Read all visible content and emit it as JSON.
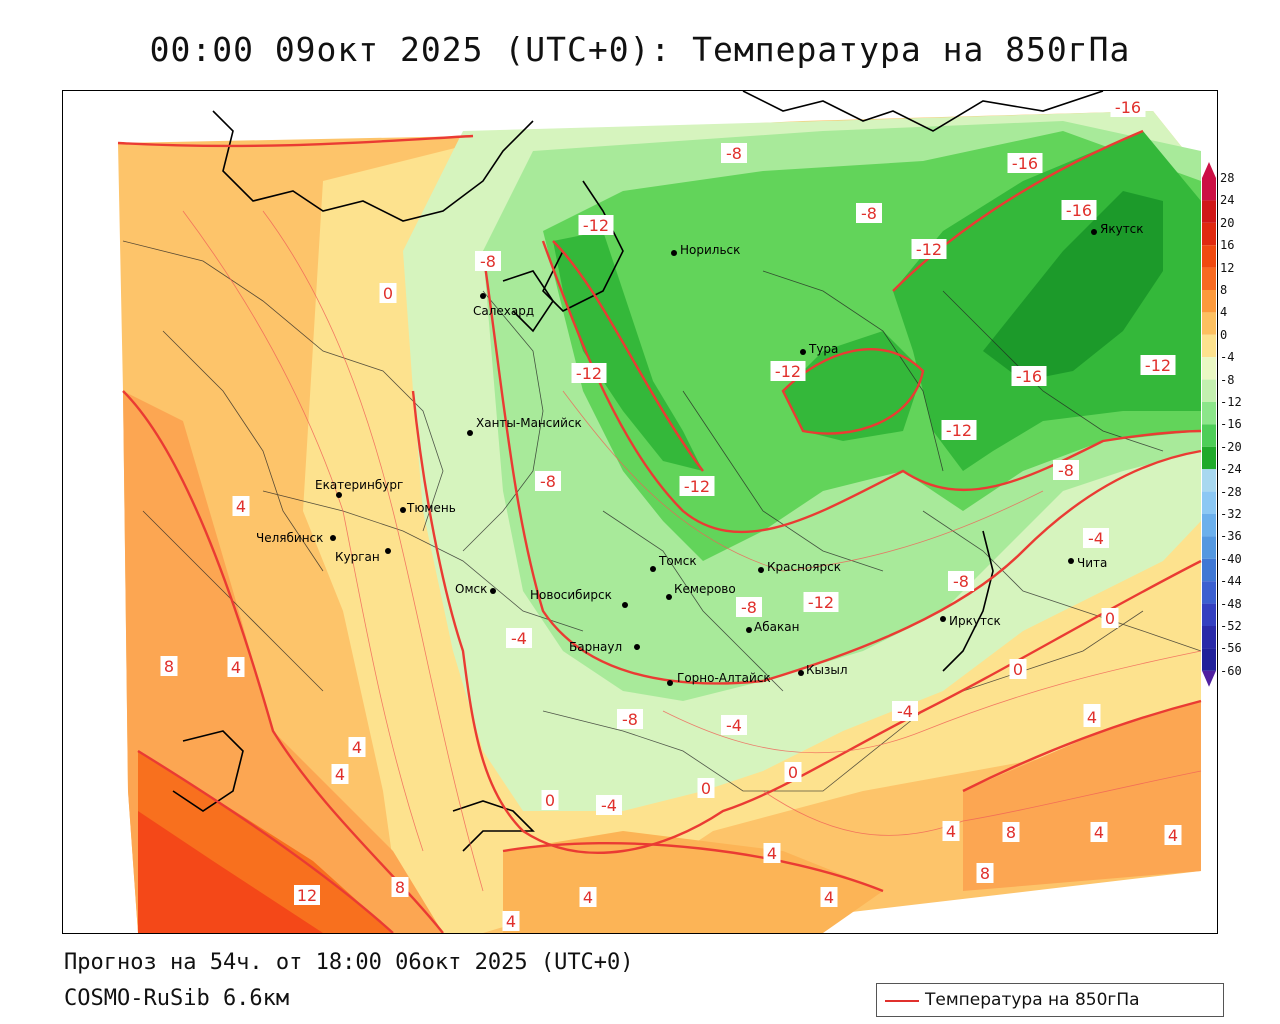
{
  "title": "00:00 09окт 2025 (UTC+0): Температура на 850гПа",
  "footer": {
    "forecast": "Прогноз на 54ч. от 18:00 06окт 2025 (UTC+0)",
    "model": "COSMO-RuSib 6.6км"
  },
  "legend": {
    "label": "Температура на 850гПа"
  },
  "scale": {
    "values": [
      "28",
      "24",
      "20",
      "16",
      "12",
      "8",
      "4",
      "0",
      "-4",
      "-8",
      "-12",
      "-16",
      "-20",
      "-24",
      "-28",
      "-32",
      "-36",
      "-40",
      "-44",
      "-48",
      "-52",
      "-56",
      "-60"
    ],
    "colors": [
      "#cc1044",
      "#d01818",
      "#e02a10",
      "#f04a10",
      "#f86a20",
      "#fc9a3c",
      "#fdc060",
      "#fde28e",
      "#eaf8c4",
      "#c4f0b0",
      "#8ce68a",
      "#4ece58",
      "#20aa2a",
      "#a8d8f0",
      "#8cc8f4",
      "#6cb0ec",
      "#5498e0",
      "#4078d4",
      "#3c60d0",
      "#3440c0",
      "#2a2aa8",
      "#20209a",
      "#5020a0"
    ]
  },
  "cities": [
    {
      "name": "Норильск"
    },
    {
      "name": "Якутск"
    },
    {
      "name": "Салехард"
    },
    {
      "name": "Тура"
    },
    {
      "name": "Ханты-Мансийск"
    },
    {
      "name": "Екатеринбург"
    },
    {
      "name": "Тюмень"
    },
    {
      "name": "Челябинск"
    },
    {
      "name": "Курган"
    },
    {
      "name": "Омск"
    },
    {
      "name": "Новосибирск"
    },
    {
      "name": "Томск"
    },
    {
      "name": "Красноярск"
    },
    {
      "name": "Кемерово"
    },
    {
      "name": "Барнаул"
    },
    {
      "name": "Абакан"
    },
    {
      "name": "Горно-Алтайск"
    },
    {
      "name": "Кызыл"
    },
    {
      "name": "Иркутск"
    },
    {
      "name": "Чита"
    }
  ],
  "isolines": [
    "-16",
    "-16",
    "-16",
    "-8",
    "-8",
    "-12",
    "-8",
    "-12",
    "-12",
    "-12",
    "0",
    "-12",
    "-16",
    "-12",
    "-8",
    "-8",
    "-12",
    "-4",
    "-8",
    "4",
    "-8",
    "-12",
    "-4",
    "0",
    "8",
    "4",
    "-8",
    "-4",
    "-4",
    "0",
    "4",
    "4",
    "4",
    "0",
    "-4",
    "0",
    "0",
    "4",
    "8",
    "4",
    "4",
    "8",
    "12",
    "8",
    "4",
    "4",
    "4",
    "4",
    "4"
  ]
}
